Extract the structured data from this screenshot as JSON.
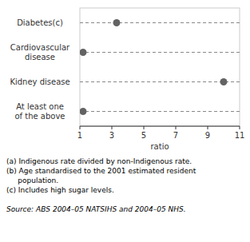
{
  "chart_data": {
    "type": "dot",
    "orientation": "horizontal",
    "categories": [
      "Diabetes(c)",
      "Cardiovascular\ndisease",
      "Kidney disease",
      "At least one\nof the above"
    ],
    "values": [
      3.3,
      1.2,
      10,
      1.2
    ],
    "color": "#636363",
    "xlabel": "ratio",
    "xlim": [
      1,
      11
    ],
    "xticks": [
      1,
      3,
      5,
      7,
      9,
      11
    ],
    "grid": false,
    "annotations": [
      "(a) Indigenous rate divided by non-Indigenous rate.",
      "(b) Age standardised to the 2001 estimated resident",
      "     population.",
      "(c) Includes high sugar levels.",
      "",
      "Source: ABS 2004–05 NATSIHS and 2004–05 NHS."
    ]
  }
}
